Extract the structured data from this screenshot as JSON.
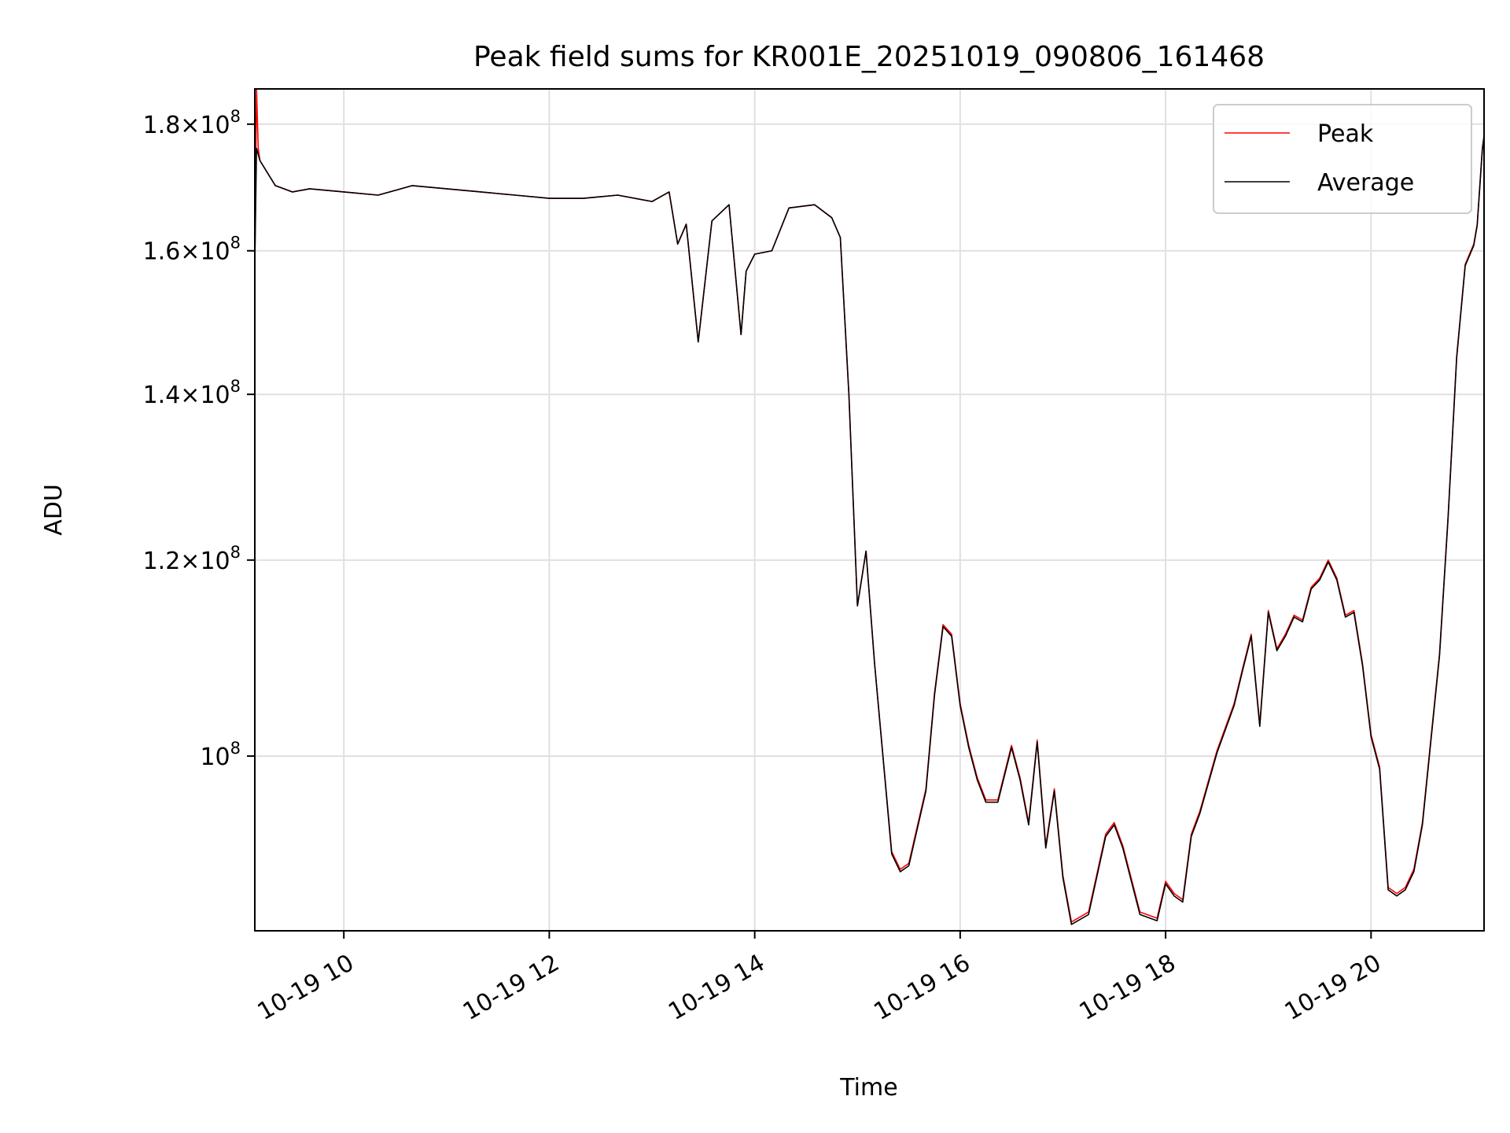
{
  "chart_data": {
    "type": "line",
    "title": "Peak field sums for KR001E_20251019_090806_161468",
    "xlabel": "Time",
    "ylabel": "ADU",
    "yscale": "log",
    "xlim": [
      "10-19 09:08",
      "10-19 21:06"
    ],
    "ylim": [
      85000000,
      186000000
    ],
    "grid": true,
    "legend_placement": "top-right",
    "x_ticks": [
      {
        "value": "10-19 10:00",
        "label": "10-19 10"
      },
      {
        "value": "10-19 12:00",
        "label": "10-19 12"
      },
      {
        "value": "10-19 14:00",
        "label": "10-19 14"
      },
      {
        "value": "10-19 16:00",
        "label": "10-19 16"
      },
      {
        "value": "10-19 18:00",
        "label": "10-19 18"
      },
      {
        "value": "10-19 20:00",
        "label": "10-19 20"
      }
    ],
    "y_ticks": [
      {
        "value": 100000000,
        "mantissa": "",
        "exponent": "8"
      },
      {
        "value": 120000000,
        "mantissa": "1.2",
        "exponent": "8"
      },
      {
        "value": 140000000,
        "mantissa": "1.4",
        "exponent": "8"
      },
      {
        "value": 160000000,
        "mantissa": "1.6",
        "exponent": "8"
      },
      {
        "value": 180000000,
        "mantissa": "1.8",
        "exponent": "8"
      }
    ],
    "x": [
      "10-19 09:08",
      "10-19 09:09",
      "10-19 09:10",
      "10-19 09:11",
      "10-19 09:20",
      "10-19 09:30",
      "10-19 09:40",
      "10-19 10:00",
      "10-19 10:20",
      "10-19 10:40",
      "10-19 11:00",
      "10-19 11:20",
      "10-19 11:40",
      "10-19 12:00",
      "10-19 12:20",
      "10-19 12:40",
      "10-19 13:00",
      "10-19 13:10",
      "10-19 13:15",
      "10-19 13:20",
      "10-19 13:27",
      "10-19 13:35",
      "10-19 13:45",
      "10-19 13:52",
      "10-19 13:55",
      "10-19 14:00",
      "10-19 14:10",
      "10-19 14:20",
      "10-19 14:35",
      "10-19 14:45",
      "10-19 14:50",
      "10-19 14:55",
      "10-19 15:00",
      "10-19 15:05",
      "10-19 15:10",
      "10-19 15:20",
      "10-19 15:25",
      "10-19 15:30",
      "10-19 15:40",
      "10-19 15:45",
      "10-19 15:50",
      "10-19 15:55",
      "10-19 16:00",
      "10-19 16:05",
      "10-19 16:10",
      "10-19 16:15",
      "10-19 16:22",
      "10-19 16:30",
      "10-19 16:35",
      "10-19 16:40",
      "10-19 16:45",
      "10-19 16:50",
      "10-19 16:55",
      "10-19 17:00",
      "10-19 17:05",
      "10-19 17:15",
      "10-19 17:25",
      "10-19 17:30",
      "10-19 17:35",
      "10-19 17:45",
      "10-19 17:55",
      "10-19 18:00",
      "10-19 18:05",
      "10-19 18:10",
      "10-19 18:15",
      "10-19 18:20",
      "10-19 18:30",
      "10-19 18:40",
      "10-19 18:45",
      "10-19 18:50",
      "10-19 18:55",
      "10-19 19:00",
      "10-19 19:05",
      "10-19 19:10",
      "10-19 19:15",
      "10-19 19:20",
      "10-19 19:25",
      "10-19 19:30",
      "10-19 19:35",
      "10-19 19:40",
      "10-19 19:45",
      "10-19 19:50",
      "10-19 19:55",
      "10-19 20:00",
      "10-19 20:05",
      "10-19 20:10",
      "10-19 20:15",
      "10-19 20:20",
      "10-19 20:25",
      "10-19 20:30",
      "10-19 20:40",
      "10-19 20:45",
      "10-19 20:50",
      "10-19 20:55",
      "10-19 21:00",
      "10-19 21:02",
      "10-19 21:05",
      "10-19 21:06"
    ],
    "series": [
      {
        "name": "Peak",
        "color": "#ff0000",
        "values": [
          158000000,
          186000000,
          176000000,
          174000000,
          170000000,
          169000000,
          169500000,
          169000000,
          168500000,
          170000000,
          169500000,
          169000000,
          168500000,
          168000000,
          168000000,
          168500000,
          167500000,
          169000000,
          161000000,
          164000000,
          147000000,
          164500000,
          167000000,
          148000000,
          157000000,
          159500000,
          160000000,
          166500000,
          167000000,
          165000000,
          162000000,
          140000000,
          115000000,
          121000000,
          109000000,
          91500000,
          90000000,
          90500000,
          97000000,
          106000000,
          113000000,
          112000000,
          105000000,
          101000000,
          98000000,
          96000000,
          96000000,
          101000000,
          98000000,
          94000000,
          101500000,
          92000000,
          97000000,
          89500000,
          85700000,
          86500000,
          93000000,
          94000000,
          92000000,
          86500000,
          86000000,
          89000000,
          88000000,
          87500000,
          93000000,
          95000000,
          100500000,
          105000000,
          108500000,
          112000000,
          103000000,
          114500000,
          110500000,
          112000000,
          114000000,
          113500000,
          117000000,
          118000000,
          120000000,
          118000000,
          114000000,
          114500000,
          109000000,
          102000000,
          99000000,
          88500000,
          88000000,
          88500000,
          90000000,
          94000000,
          110000000,
          125000000,
          145000000,
          158000000,
          161000000,
          164000000,
          176000000,
          178000000
        ]
      },
      {
        "name": "Average",
        "color": "#000000",
        "values": [
          158000000,
          176000000,
          175000000,
          174000000,
          170000000,
          169000000,
          169500000,
          169000000,
          168500000,
          170000000,
          169500000,
          169000000,
          168500000,
          168000000,
          168000000,
          168500000,
          167500000,
          169000000,
          161000000,
          164000000,
          147000000,
          164500000,
          167000000,
          148000000,
          157000000,
          159500000,
          160000000,
          166500000,
          167000000,
          165000000,
          162000000,
          140000000,
          115000000,
          121000000,
          109000000,
          91300000,
          89800000,
          90300000,
          96800000,
          105800000,
          112800000,
          111800000,
          104800000,
          100800000,
          97800000,
          95800000,
          95800000,
          100800000,
          97800000,
          93800000,
          101300000,
          91800000,
          96800000,
          89300000,
          85500000,
          86300000,
          92800000,
          93800000,
          91800000,
          86300000,
          85800000,
          88800000,
          87800000,
          87300000,
          92800000,
          94800000,
          100300000,
          104800000,
          108300000,
          111800000,
          102800000,
          114300000,
          110300000,
          111800000,
          113800000,
          113300000,
          116800000,
          117800000,
          119800000,
          117800000,
          113800000,
          114300000,
          108800000,
          101800000,
          98800000,
          88300000,
          87800000,
          88300000,
          89800000,
          93800000,
          109800000,
          124800000,
          144800000,
          157800000,
          160800000,
          163800000,
          175800000,
          178000000
        ]
      }
    ]
  }
}
